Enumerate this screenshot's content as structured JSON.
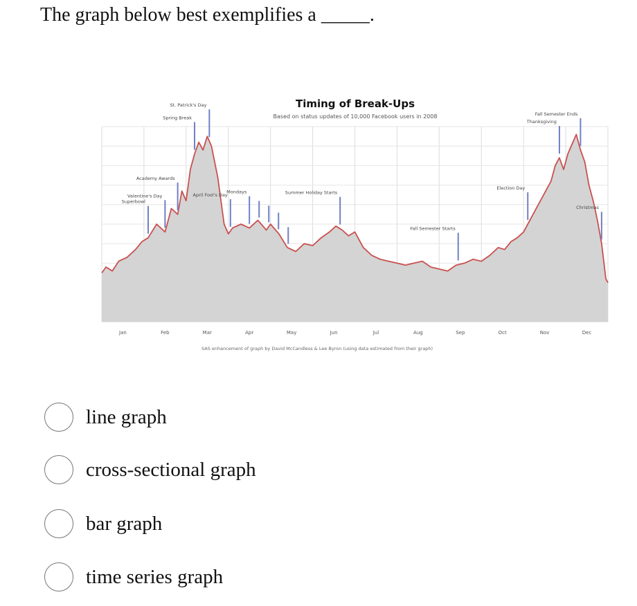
{
  "question": {
    "text": "The graph below best exemplifies a _____."
  },
  "chart_data": {
    "type": "area",
    "title": "Timing of Break-Ups",
    "subtitle": "Based on status updates of 10,000 Facebook users in 2008",
    "footnote": "SAS enhancement of graph by David McCandless & Lee Byron (using data estimated from their graph)",
    "months": [
      "Jan",
      "Feb",
      "Mar",
      "Apr",
      "May",
      "Jun",
      "Jul",
      "Aug",
      "Sep",
      "Oct",
      "Nov",
      "Dec"
    ],
    "x_unit": "month of year (0 = Jan 1, 12 = Dec 31)",
    "ylim": [
      0,
      100
    ],
    "grid": true,
    "series": [
      {
        "x": [
          0,
          0.1,
          0.25,
          0.4,
          0.6,
          0.8,
          0.95,
          1.1,
          1.3,
          1.5,
          1.65,
          1.8,
          1.9,
          2.0,
          2.1,
          2.2,
          2.3,
          2.4,
          2.5,
          2.6,
          2.75,
          2.9,
          3.0,
          3.1,
          3.3,
          3.5,
          3.7,
          3.9,
          4.0,
          4.2,
          4.4,
          4.6,
          4.8,
          5.0,
          5.2,
          5.4,
          5.55,
          5.7,
          5.85,
          6.0,
          6.2,
          6.4,
          6.6,
          6.8,
          7.0,
          7.2,
          7.4,
          7.6,
          7.8,
          8.0,
          8.2,
          8.4,
          8.6,
          8.8,
          9.0,
          9.2,
          9.4,
          9.55,
          9.7,
          9.85,
          10.0,
          10.15,
          10.3,
          10.45,
          10.55,
          10.65,
          10.75,
          10.85,
          10.95,
          11.05,
          11.15,
          11.25,
          11.35,
          11.45,
          11.55,
          11.65,
          11.75,
          11.85,
          11.95,
          12.0
        ],
        "y": [
          25,
          28,
          26,
          31,
          33,
          37,
          41,
          43,
          50,
          46,
          58,
          55,
          67,
          62,
          78,
          86,
          92,
          88,
          95,
          90,
          74,
          50,
          45,
          48,
          50,
          48,
          52,
          47,
          50,
          45,
          38,
          36,
          40,
          39,
          43,
          46,
          49,
          47,
          44,
          46,
          38,
          34,
          32,
          31,
          30,
          29,
          30,
          31,
          28,
          27,
          26,
          29,
          30,
          32,
          31,
          34,
          38,
          37,
          41,
          43,
          46,
          52,
          58,
          64,
          68,
          72,
          80,
          84,
          78,
          86,
          91,
          96,
          88,
          82,
          70,
          62,
          52,
          40,
          22,
          20
        ]
      }
    ],
    "annotations": [
      {
        "label": "Superbowl",
        "x": 1.1
      },
      {
        "label": "Valentine's Day",
        "x": 1.5
      },
      {
        "label": "Academy Awards",
        "x": 1.8
      },
      {
        "label": "Spring Break",
        "x": 2.2
      },
      {
        "label": "St. Patrick's Day",
        "x": 2.55
      },
      {
        "label": "April Fool's Day",
        "x": 3.05
      },
      {
        "label": "Mondays",
        "x": 3.5
      },
      {
        "label": "Summer Holiday Starts",
        "x": 5.65
      },
      {
        "label": "Fall Semester Starts",
        "x": 8.45
      },
      {
        "label": "Election Day",
        "x": 10.1
      },
      {
        "label": "Thanksgiving",
        "x": 10.85
      },
      {
        "label": "Fall Semester Ends",
        "x": 11.35
      },
      {
        "label": "Christmas",
        "x": 11.85
      }
    ],
    "mondays_x": [
      3.5,
      3.73,
      3.96,
      4.19,
      4.42
    ]
  },
  "options": [
    {
      "label": "line graph"
    },
    {
      "label": "cross-sectional graph"
    },
    {
      "label": "bar graph"
    },
    {
      "label": "time series graph"
    }
  ]
}
